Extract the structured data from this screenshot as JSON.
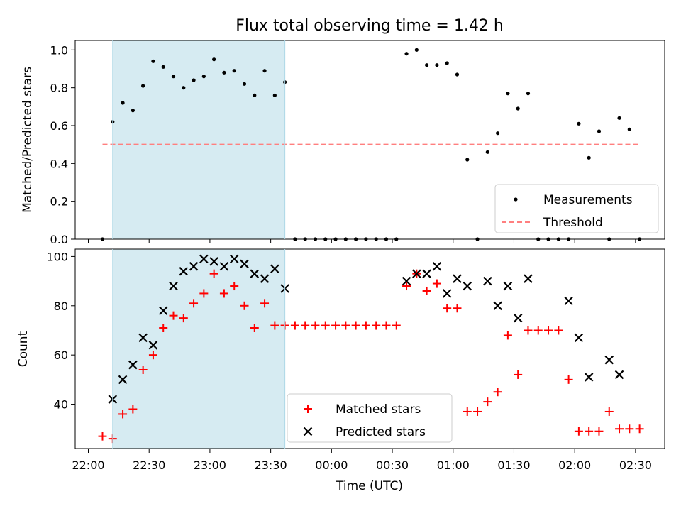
{
  "chart_data": [
    {
      "type": "scatter",
      "title": "Flux total observing time = 1.42 h",
      "ylabel": "Matched/Predicted stars",
      "xlabel": "",
      "ylim": [
        0,
        1.05
      ],
      "yticks": [
        "0.0",
        "0.2",
        "0.4",
        "0.6",
        "0.8",
        "1.0"
      ],
      "grid": false,
      "legend_position": "lower-right",
      "shaded_interval": [
        "22:12",
        "23:37"
      ],
      "shade_color": "#add8e6",
      "series": [
        {
          "name": "Measurements",
          "marker": "dot",
          "color": "#000000",
          "x": [
            "22:07",
            "22:12",
            "22:17",
            "22:22",
            "22:27",
            "22:32",
            "22:37",
            "22:42",
            "22:47",
            "22:52",
            "22:57",
            "23:02",
            "23:07",
            "23:12",
            "23:17",
            "23:22",
            "23:27",
            "23:32",
            "23:37",
            "23:42",
            "23:47",
            "23:52",
            "23:57",
            "00:02",
            "00:07",
            "00:12",
            "00:17",
            "00:22",
            "00:27",
            "00:32",
            "00:37",
            "00:42",
            "00:47",
            "00:52",
            "00:57",
            "01:02",
            "01:07",
            "01:12",
            "01:17",
            "01:22",
            "01:27",
            "01:32",
            "01:37",
            "01:42",
            "01:47",
            "01:52",
            "01:57",
            "02:02",
            "02:07",
            "02:12",
            "02:17",
            "02:22",
            "02:27",
            "02:32"
          ],
          "y": [
            0.0,
            0.62,
            0.72,
            0.68,
            0.81,
            0.94,
            0.91,
            0.86,
            0.8,
            0.84,
            0.86,
            0.95,
            0.88,
            0.89,
            0.82,
            0.76,
            0.89,
            0.76,
            0.83,
            0.0,
            0.0,
            0.0,
            0.0,
            0.0,
            0.0,
            0.0,
            0.0,
            0.0,
            0.0,
            0.0,
            0.98,
            1.0,
            0.92,
            0.92,
            0.93,
            0.87,
            0.42,
            0.0,
            0.46,
            0.56,
            0.77,
            0.69,
            0.77,
            0.0,
            0.0,
            0.0,
            0.0,
            0.61,
            0.43,
            0.57,
            0.0,
            0.64,
            0.58,
            0.0
          ]
        },
        {
          "name": "Threshold",
          "marker": "dashed-line",
          "color": "#ff7f7f",
          "x": [
            "22:07",
            "02:32"
          ],
          "y": [
            0.5,
            0.5
          ]
        }
      ]
    },
    {
      "type": "scatter",
      "title": "",
      "ylabel": "Count",
      "xlabel": "Time (UTC)",
      "ylim": [
        22,
        103
      ],
      "yticks": [
        "40",
        "60",
        "80",
        "100"
      ],
      "xticks": [
        "22:00",
        "22:30",
        "23:00",
        "23:30",
        "00:00",
        "00:30",
        "01:00",
        "01:30",
        "02:00",
        "02:30"
      ],
      "grid": false,
      "legend_position": "lower-center",
      "shaded_interval": [
        "22:12",
        "23:37"
      ],
      "shade_color": "#add8e6",
      "series": [
        {
          "name": "Matched stars",
          "marker": "plus",
          "color": "#ff0000",
          "x": [
            "22:07",
            "22:12",
            "22:17",
            "22:22",
            "22:27",
            "22:32",
            "22:37",
            "22:42",
            "22:47",
            "22:52",
            "22:57",
            "23:02",
            "23:07",
            "23:12",
            "23:17",
            "23:22",
            "23:27",
            "23:32",
            "23:37",
            "23:42",
            "23:47",
            "23:52",
            "23:57",
            "00:02",
            "00:07",
            "00:12",
            "00:17",
            "00:22",
            "00:27",
            "00:32",
            "00:37",
            "00:42",
            "00:47",
            "00:52",
            "00:57",
            "01:02",
            "01:07",
            "01:12",
            "01:17",
            "01:22",
            "01:27",
            "01:32",
            "01:37",
            "01:42",
            "01:47",
            "01:52",
            "01:57",
            "02:02",
            "02:07",
            "02:12",
            "02:17",
            "02:22",
            "02:27",
            "02:32"
          ],
          "y": [
            27,
            26,
            36,
            38,
            54,
            60,
            71,
            76,
            75,
            81,
            85,
            93,
            85,
            88,
            80,
            71,
            81,
            72,
            72,
            72,
            72,
            72,
            72,
            72,
            72,
            72,
            72,
            72,
            72,
            72,
            88,
            93,
            86,
            89,
            79,
            79,
            37,
            37,
            41,
            45,
            68,
            52,
            70,
            70,
            70,
            70,
            50,
            29,
            29,
            29,
            37,
            30,
            30,
            30
          ]
        },
        {
          "name": "Predicted stars",
          "marker": "x",
          "color": "#000000",
          "x": [
            "22:12",
            "22:17",
            "22:22",
            "22:27",
            "22:32",
            "22:37",
            "22:42",
            "22:47",
            "22:52",
            "22:57",
            "23:02",
            "23:07",
            "23:12",
            "23:17",
            "23:22",
            "23:27",
            "23:32",
            "23:37",
            "00:37",
            "00:42",
            "00:47",
            "00:52",
            "00:57",
            "01:02",
            "01:07",
            "01:17",
            "01:22",
            "01:27",
            "01:32",
            "01:37",
            "01:57",
            "02:02",
            "02:07",
            "02:17",
            "02:22"
          ],
          "y": [
            42,
            50,
            56,
            67,
            64,
            78,
            88,
            94,
            96,
            99,
            98,
            96,
            99,
            97,
            93,
            91,
            95,
            87,
            90,
            93,
            93,
            96,
            85,
            91,
            88,
            90,
            80,
            88,
            75,
            91,
            82,
            67,
            51,
            58,
            52
          ]
        }
      ]
    }
  ]
}
